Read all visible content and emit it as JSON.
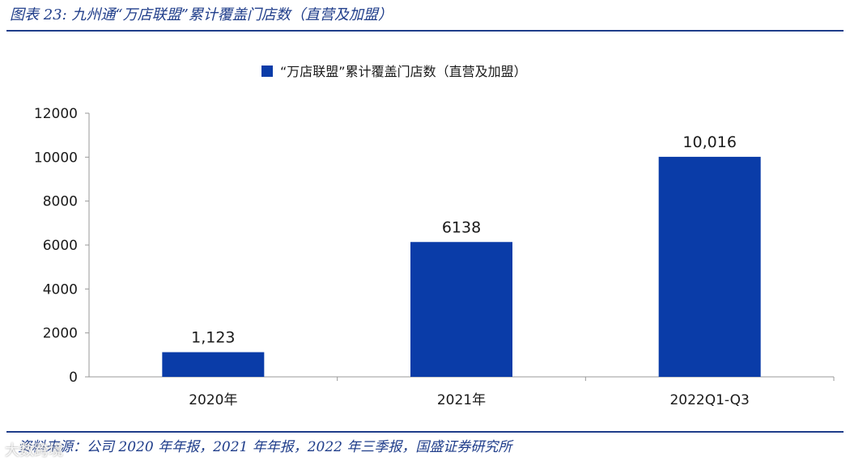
{
  "figure": {
    "title": "图表 23: 九州通“万店联盟”累计覆盖门店数（直营及加盟）",
    "source": "资料来源：公司 2020 年年报，2021 年年报，2022 年三季报，国盛证券研究所",
    "watermark": "大数跨境"
  },
  "colors": {
    "bar": "#0a3ca8",
    "rule": "#1f3d8a",
    "axis": "#999999"
  },
  "chart_data": {
    "type": "bar",
    "title": "",
    "xlabel": "",
    "ylabel": "",
    "categories": [
      "2020年",
      "2021年",
      "2022Q1-Q3"
    ],
    "series": [
      {
        "name": "“万店联盟”累计覆盖门店数（直营及加盟）",
        "values": [
          1123,
          6138,
          10016
        ],
        "labels": [
          "1,123",
          "6138",
          "10,016"
        ]
      }
    ],
    "ylim": [
      0,
      12000
    ],
    "yticks": [
      0,
      2000,
      4000,
      6000,
      8000,
      10000,
      12000
    ],
    "grid": false,
    "legend": "top-center"
  }
}
